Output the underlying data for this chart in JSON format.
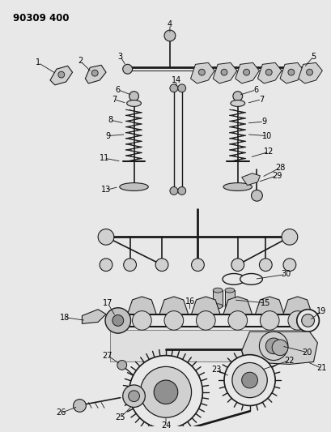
{
  "background_color": "#e8e8e8",
  "line_color": "#1a1a1a",
  "label_color": "#000000",
  "fig_width": 4.09,
  "fig_height": 5.33,
  "dpi": 100,
  "title": "90309 400",
  "title_fontsize": 8.5,
  "label_fontsize": 7.0
}
